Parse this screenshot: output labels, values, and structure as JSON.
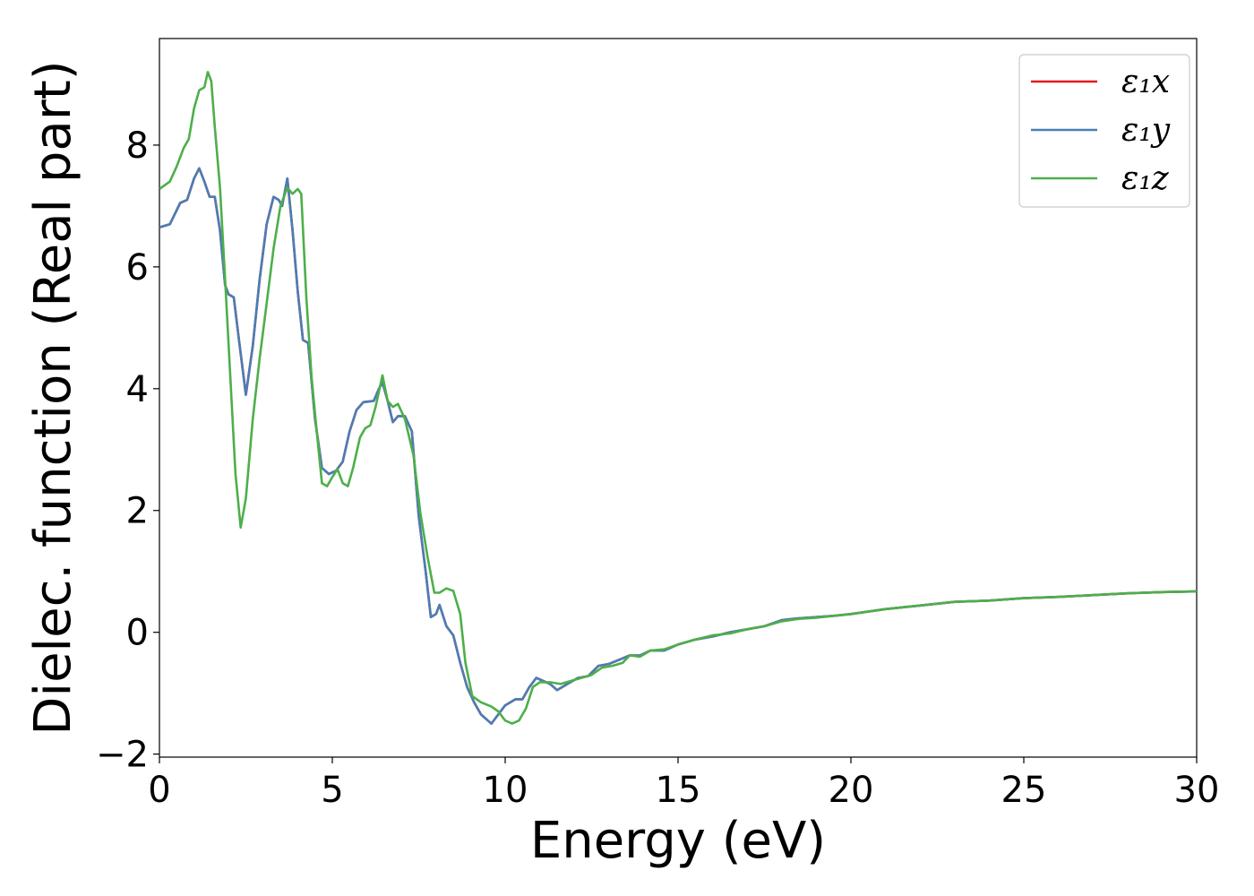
{
  "chart_data": {
    "type": "line",
    "title": "",
    "xlabel": "Energy (eV)",
    "ylabel": "Dielec. function (Real part)",
    "xlim": [
      0,
      30
    ],
    "ylim": [
      -2.05,
      9.75
    ],
    "xticks": [
      0,
      5,
      10,
      15,
      20,
      25,
      30
    ],
    "xtick_labels": [
      "0",
      "5",
      "10",
      "15",
      "20",
      "25",
      "30"
    ],
    "yticks": [
      -2,
      0,
      2,
      4,
      6,
      8
    ],
    "ytick_labels": [
      "−2",
      "0",
      "2",
      "4",
      "6",
      "8"
    ],
    "grid": false,
    "legend_position": "top-right",
    "series": [
      {
        "name": "ε₁x",
        "color": "#e41a1c",
        "points": [
          [
            0,
            6.65
          ],
          [
            0.3,
            6.7
          ],
          [
            0.6,
            7.05
          ],
          [
            0.8,
            7.1
          ],
          [
            1.0,
            7.45
          ],
          [
            1.15,
            7.62
          ],
          [
            1.3,
            7.4
          ],
          [
            1.45,
            7.15
          ],
          [
            1.6,
            7.15
          ],
          [
            1.75,
            6.6
          ],
          [
            1.9,
            5.7
          ],
          [
            2.0,
            5.55
          ],
          [
            2.15,
            5.5
          ],
          [
            2.3,
            4.8
          ],
          [
            2.5,
            3.9
          ],
          [
            2.7,
            4.7
          ],
          [
            2.9,
            5.8
          ],
          [
            3.1,
            6.7
          ],
          [
            3.3,
            7.15
          ],
          [
            3.45,
            7.1
          ],
          [
            3.55,
            7.0
          ],
          [
            3.7,
            7.45
          ],
          [
            3.85,
            6.6
          ],
          [
            4.0,
            5.6
          ],
          [
            4.15,
            4.8
          ],
          [
            4.3,
            4.75
          ],
          [
            4.5,
            3.5
          ],
          [
            4.7,
            2.7
          ],
          [
            4.9,
            2.6
          ],
          [
            5.1,
            2.65
          ],
          [
            5.3,
            2.8
          ],
          [
            5.5,
            3.3
          ],
          [
            5.7,
            3.65
          ],
          [
            5.9,
            3.78
          ],
          [
            6.2,
            3.8
          ],
          [
            6.35,
            4.0
          ],
          [
            6.45,
            4.1
          ],
          [
            6.6,
            3.8
          ],
          [
            6.75,
            3.45
          ],
          [
            6.9,
            3.55
          ],
          [
            7.1,
            3.55
          ],
          [
            7.3,
            3.3
          ],
          [
            7.5,
            1.9
          ],
          [
            7.7,
            1.0
          ],
          [
            7.85,
            0.25
          ],
          [
            8.0,
            0.3
          ],
          [
            8.1,
            0.45
          ],
          [
            8.3,
            0.1
          ],
          [
            8.5,
            -0.05
          ],
          [
            8.7,
            -0.5
          ],
          [
            8.9,
            -0.9
          ],
          [
            9.1,
            -1.15
          ],
          [
            9.3,
            -1.35
          ],
          [
            9.5,
            -1.45
          ],
          [
            9.6,
            -1.5
          ],
          [
            9.8,
            -1.35
          ],
          [
            10.0,
            -1.2
          ],
          [
            10.3,
            -1.1
          ],
          [
            10.5,
            -1.1
          ],
          [
            10.7,
            -0.9
          ],
          [
            10.9,
            -0.75
          ],
          [
            11.1,
            -0.8
          ],
          [
            11.3,
            -0.85
          ],
          [
            11.5,
            -0.95
          ],
          [
            11.8,
            -0.85
          ],
          [
            12.1,
            -0.75
          ],
          [
            12.4,
            -0.72
          ],
          [
            12.7,
            -0.55
          ],
          [
            13.0,
            -0.52
          ],
          [
            13.3,
            -0.45
          ],
          [
            13.6,
            -0.38
          ],
          [
            13.9,
            -0.38
          ],
          [
            14.2,
            -0.3
          ],
          [
            14.6,
            -0.3
          ],
          [
            15.0,
            -0.2
          ],
          [
            15.5,
            -0.12
          ],
          [
            16.0,
            -0.07
          ],
          [
            16.5,
            0.0
          ],
          [
            17.0,
            0.05
          ],
          [
            17.5,
            0.1
          ],
          [
            18.0,
            0.2
          ],
          [
            18.5,
            0.23
          ],
          [
            19.0,
            0.25
          ],
          [
            19.5,
            0.27
          ],
          [
            20.0,
            0.3
          ],
          [
            21.0,
            0.38
          ],
          [
            22.0,
            0.44
          ],
          [
            23.0,
            0.5
          ],
          [
            24.0,
            0.52
          ],
          [
            25.0,
            0.56
          ],
          [
            26.0,
            0.58
          ],
          [
            27.0,
            0.61
          ],
          [
            28.0,
            0.64
          ],
          [
            29.0,
            0.66
          ],
          [
            30.0,
            0.67
          ]
        ]
      },
      {
        "name": "ε₁y",
        "color": "#4a7db5",
        "points": [
          [
            0,
            6.65
          ],
          [
            0.3,
            6.7
          ],
          [
            0.6,
            7.05
          ],
          [
            0.8,
            7.1
          ],
          [
            1.0,
            7.45
          ],
          [
            1.15,
            7.62
          ],
          [
            1.3,
            7.4
          ],
          [
            1.45,
            7.15
          ],
          [
            1.6,
            7.15
          ],
          [
            1.75,
            6.6
          ],
          [
            1.9,
            5.7
          ],
          [
            2.0,
            5.55
          ],
          [
            2.15,
            5.5
          ],
          [
            2.3,
            4.8
          ],
          [
            2.5,
            3.9
          ],
          [
            2.7,
            4.7
          ],
          [
            2.9,
            5.8
          ],
          [
            3.1,
            6.7
          ],
          [
            3.3,
            7.15
          ],
          [
            3.45,
            7.1
          ],
          [
            3.55,
            7.0
          ],
          [
            3.7,
            7.45
          ],
          [
            3.85,
            6.6
          ],
          [
            4.0,
            5.6
          ],
          [
            4.15,
            4.8
          ],
          [
            4.3,
            4.75
          ],
          [
            4.5,
            3.5
          ],
          [
            4.7,
            2.7
          ],
          [
            4.9,
            2.6
          ],
          [
            5.1,
            2.65
          ],
          [
            5.3,
            2.8
          ],
          [
            5.5,
            3.3
          ],
          [
            5.7,
            3.65
          ],
          [
            5.9,
            3.78
          ],
          [
            6.2,
            3.8
          ],
          [
            6.35,
            4.0
          ],
          [
            6.45,
            4.1
          ],
          [
            6.6,
            3.8
          ],
          [
            6.75,
            3.45
          ],
          [
            6.9,
            3.55
          ],
          [
            7.1,
            3.55
          ],
          [
            7.3,
            3.3
          ],
          [
            7.5,
            1.9
          ],
          [
            7.7,
            1.0
          ],
          [
            7.85,
            0.25
          ],
          [
            8.0,
            0.3
          ],
          [
            8.1,
            0.45
          ],
          [
            8.3,
            0.1
          ],
          [
            8.5,
            -0.05
          ],
          [
            8.7,
            -0.5
          ],
          [
            8.9,
            -0.9
          ],
          [
            9.1,
            -1.15
          ],
          [
            9.3,
            -1.35
          ],
          [
            9.5,
            -1.45
          ],
          [
            9.6,
            -1.5
          ],
          [
            9.8,
            -1.35
          ],
          [
            10.0,
            -1.2
          ],
          [
            10.3,
            -1.1
          ],
          [
            10.5,
            -1.1
          ],
          [
            10.7,
            -0.9
          ],
          [
            10.9,
            -0.75
          ],
          [
            11.1,
            -0.8
          ],
          [
            11.3,
            -0.85
          ],
          [
            11.5,
            -0.95
          ],
          [
            11.8,
            -0.85
          ],
          [
            12.1,
            -0.75
          ],
          [
            12.4,
            -0.72
          ],
          [
            12.7,
            -0.55
          ],
          [
            13.0,
            -0.52
          ],
          [
            13.3,
            -0.45
          ],
          [
            13.6,
            -0.38
          ],
          [
            13.9,
            -0.38
          ],
          [
            14.2,
            -0.3
          ],
          [
            14.6,
            -0.3
          ],
          [
            15.0,
            -0.2
          ],
          [
            15.5,
            -0.12
          ],
          [
            16.0,
            -0.07
          ],
          [
            16.5,
            0.0
          ],
          [
            17.0,
            0.05
          ],
          [
            17.5,
            0.1
          ],
          [
            18.0,
            0.2
          ],
          [
            18.5,
            0.23
          ],
          [
            19.0,
            0.25
          ],
          [
            19.5,
            0.27
          ],
          [
            20.0,
            0.3
          ],
          [
            21.0,
            0.38
          ],
          [
            22.0,
            0.44
          ],
          [
            23.0,
            0.5
          ],
          [
            24.0,
            0.52
          ],
          [
            25.0,
            0.56
          ],
          [
            26.0,
            0.58
          ],
          [
            27.0,
            0.61
          ],
          [
            28.0,
            0.64
          ],
          [
            29.0,
            0.66
          ],
          [
            30.0,
            0.67
          ]
        ]
      },
      {
        "name": "ε₁z",
        "color": "#4daf4a",
        "points": [
          [
            0,
            7.28
          ],
          [
            0.3,
            7.4
          ],
          [
            0.5,
            7.65
          ],
          [
            0.7,
            7.95
          ],
          [
            0.85,
            8.1
          ],
          [
            1.0,
            8.6
          ],
          [
            1.15,
            8.9
          ],
          [
            1.3,
            8.95
          ],
          [
            1.4,
            9.2
          ],
          [
            1.5,
            9.05
          ],
          [
            1.6,
            8.3
          ],
          [
            1.75,
            7.3
          ],
          [
            1.9,
            5.8
          ],
          [
            2.05,
            4.2
          ],
          [
            2.2,
            2.6
          ],
          [
            2.35,
            1.72
          ],
          [
            2.5,
            2.2
          ],
          [
            2.7,
            3.5
          ],
          [
            2.9,
            4.5
          ],
          [
            3.1,
            5.4
          ],
          [
            3.3,
            6.3
          ],
          [
            3.5,
            7.0
          ],
          [
            3.7,
            7.3
          ],
          [
            3.85,
            7.2
          ],
          [
            4.0,
            7.28
          ],
          [
            4.1,
            7.2
          ],
          [
            4.25,
            5.5
          ],
          [
            4.4,
            4.2
          ],
          [
            4.55,
            3.3
          ],
          [
            4.7,
            2.45
          ],
          [
            4.85,
            2.4
          ],
          [
            5.0,
            2.55
          ],
          [
            5.15,
            2.68
          ],
          [
            5.3,
            2.45
          ],
          [
            5.45,
            2.4
          ],
          [
            5.6,
            2.7
          ],
          [
            5.8,
            3.2
          ],
          [
            5.95,
            3.35
          ],
          [
            6.1,
            3.4
          ],
          [
            6.25,
            3.7
          ],
          [
            6.45,
            4.22
          ],
          [
            6.6,
            3.8
          ],
          [
            6.75,
            3.7
          ],
          [
            6.9,
            3.75
          ],
          [
            7.1,
            3.5
          ],
          [
            7.35,
            2.9
          ],
          [
            7.55,
            1.95
          ],
          [
            7.75,
            1.25
          ],
          [
            7.95,
            0.65
          ],
          [
            8.1,
            0.65
          ],
          [
            8.3,
            0.72
          ],
          [
            8.5,
            0.68
          ],
          [
            8.7,
            0.3
          ],
          [
            8.85,
            -0.5
          ],
          [
            9.05,
            -1.05
          ],
          [
            9.3,
            -1.15
          ],
          [
            9.6,
            -1.22
          ],
          [
            9.8,
            -1.3
          ],
          [
            10.0,
            -1.45
          ],
          [
            10.2,
            -1.5
          ],
          [
            10.4,
            -1.45
          ],
          [
            10.6,
            -1.25
          ],
          [
            10.8,
            -0.9
          ],
          [
            11.0,
            -0.82
          ],
          [
            11.3,
            -0.82
          ],
          [
            11.6,
            -0.85
          ],
          [
            11.9,
            -0.8
          ],
          [
            12.2,
            -0.75
          ],
          [
            12.5,
            -0.7
          ],
          [
            12.8,
            -0.58
          ],
          [
            13.1,
            -0.55
          ],
          [
            13.4,
            -0.5
          ],
          [
            13.6,
            -0.38
          ],
          [
            13.9,
            -0.4
          ],
          [
            14.2,
            -0.3
          ],
          [
            14.6,
            -0.28
          ],
          [
            15.0,
            -0.2
          ],
          [
            15.5,
            -0.12
          ],
          [
            16.0,
            -0.05
          ],
          [
            16.5,
            -0.02
          ],
          [
            17.0,
            0.05
          ],
          [
            17.5,
            0.1
          ],
          [
            18.0,
            0.18
          ],
          [
            18.5,
            0.22
          ],
          [
            19.0,
            0.24
          ],
          [
            19.5,
            0.27
          ],
          [
            20.0,
            0.3
          ],
          [
            21.0,
            0.38
          ],
          [
            22.0,
            0.44
          ],
          [
            23.0,
            0.5
          ],
          [
            24.0,
            0.52
          ],
          [
            25.0,
            0.56
          ],
          [
            26.0,
            0.58
          ],
          [
            27.0,
            0.61
          ],
          [
            28.0,
            0.64
          ],
          [
            29.0,
            0.66
          ],
          [
            30.0,
            0.67
          ]
        ]
      }
    ]
  }
}
